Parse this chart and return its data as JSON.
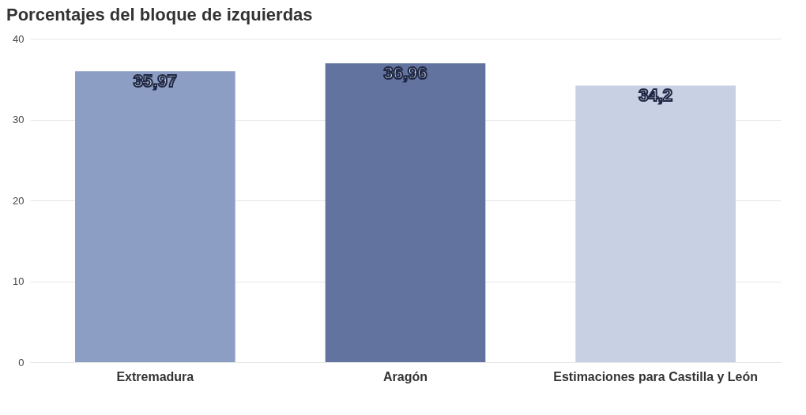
{
  "chart_data": {
    "type": "bar",
    "title": "Porcentajes del bloque de izquierdas",
    "categories": [
      "Extremadura",
      "Aragón",
      "Estimaciones para Castilla y León"
    ],
    "values": [
      35.97,
      36.96,
      34.2
    ],
    "value_labels": [
      "35,97",
      "36,96",
      "34,2"
    ],
    "colors": [
      "#8c9ec4",
      "#6373a0",
      "#c8d0e4"
    ],
    "ylim": [
      0,
      40
    ],
    "yticks": [
      0,
      10,
      20,
      30,
      40
    ],
    "grid": "y"
  }
}
